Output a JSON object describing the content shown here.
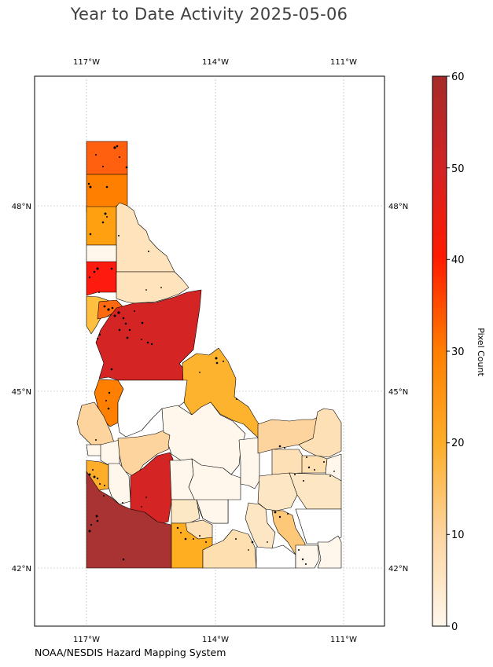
{
  "title": "Year to Date Activity 2025-05-06",
  "credit": "NOAA/NESDIS Hazard Mapping System",
  "map": {
    "region": "Idaho counties",
    "lon_ticks": [
      "117°W",
      "114°W",
      "111°W"
    ],
    "lat_ticks": [
      "48°N",
      "45°N",
      "42°N"
    ],
    "gridlines": true
  },
  "colorbar": {
    "label": "Pixel Count",
    "min": 0,
    "max": 60,
    "ticks": [
      "0",
      "10",
      "20",
      "30",
      "40",
      "50",
      "60"
    ],
    "colors": [
      "#fff7ec",
      "#fdd49e",
      "#fdae28",
      "#ff7f00",
      "#ff3000",
      "#d02020",
      "#a83232"
    ]
  },
  "colors": {
    "outline": "#000000",
    "grid": "#b0b0b0"
  }
}
